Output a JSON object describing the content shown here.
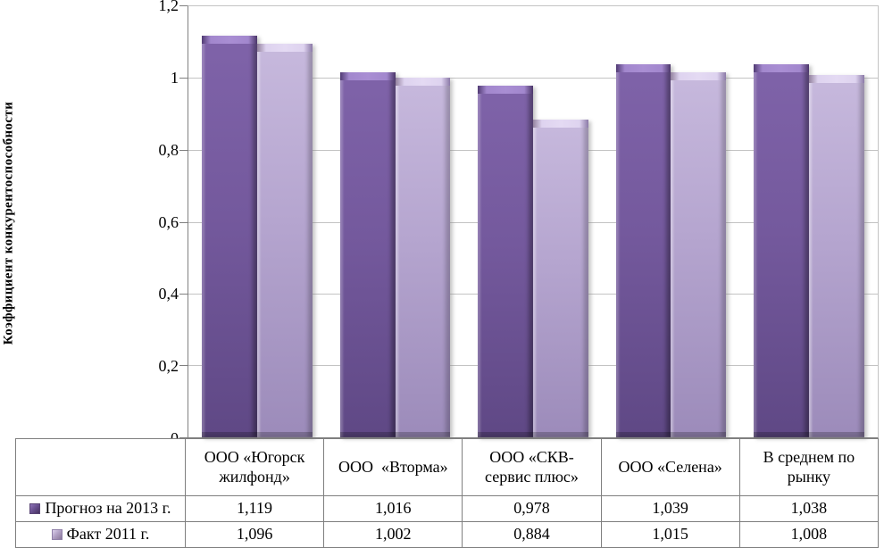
{
  "chart_data": {
    "type": "bar",
    "title": "",
    "xlabel": "",
    "ylabel": "Коэффициент конкурентоспособности",
    "ylim": [
      0,
      1.2
    ],
    "ytick_step": 0.2,
    "yticks_display": [
      "1,2",
      "1",
      "0,8",
      "0,6",
      "0,4",
      "0,2",
      "0"
    ],
    "grid": true,
    "legend_position": "bottom-table-left",
    "categories": [
      "ООО «Югорск жилфонд»",
      "ООО «Вторма»",
      "ООО «СКВ-сервис плюс»",
      "ООО «Селена»",
      "В среднем по рынку"
    ],
    "categories_display": [
      "ООО «Югорск\nжилфонд»",
      "ООО  «Вторма»",
      "ООО «СКВ-\nсервис плюс»",
      "ООО «Селена»",
      "В среднем по\nрынку"
    ],
    "series": [
      {
        "name": "Прогноз на 2013 г.",
        "values": [
          1.119,
          1.016,
          0.978,
          1.039,
          1.038
        ],
        "display": [
          "1,119",
          "1,016",
          "0,978",
          "1,039",
          "1,038"
        ],
        "color": "#604a7b"
      },
      {
        "name": "Факт 2011 г.",
        "values": [
          1.096,
          1.002,
          0.884,
          1.015,
          1.008
        ],
        "display": [
          "1,096",
          "1,002",
          "0,884",
          "1,015",
          "1,008"
        ],
        "color": "#b3a2c7"
      }
    ]
  },
  "colors": {
    "series_dark": "#604a7b",
    "series_light": "#b3a2c7",
    "gridline": "#c3c3c3",
    "axis": "#808080",
    "table_border": "#7f7f7f",
    "background": "#ffffff"
  }
}
